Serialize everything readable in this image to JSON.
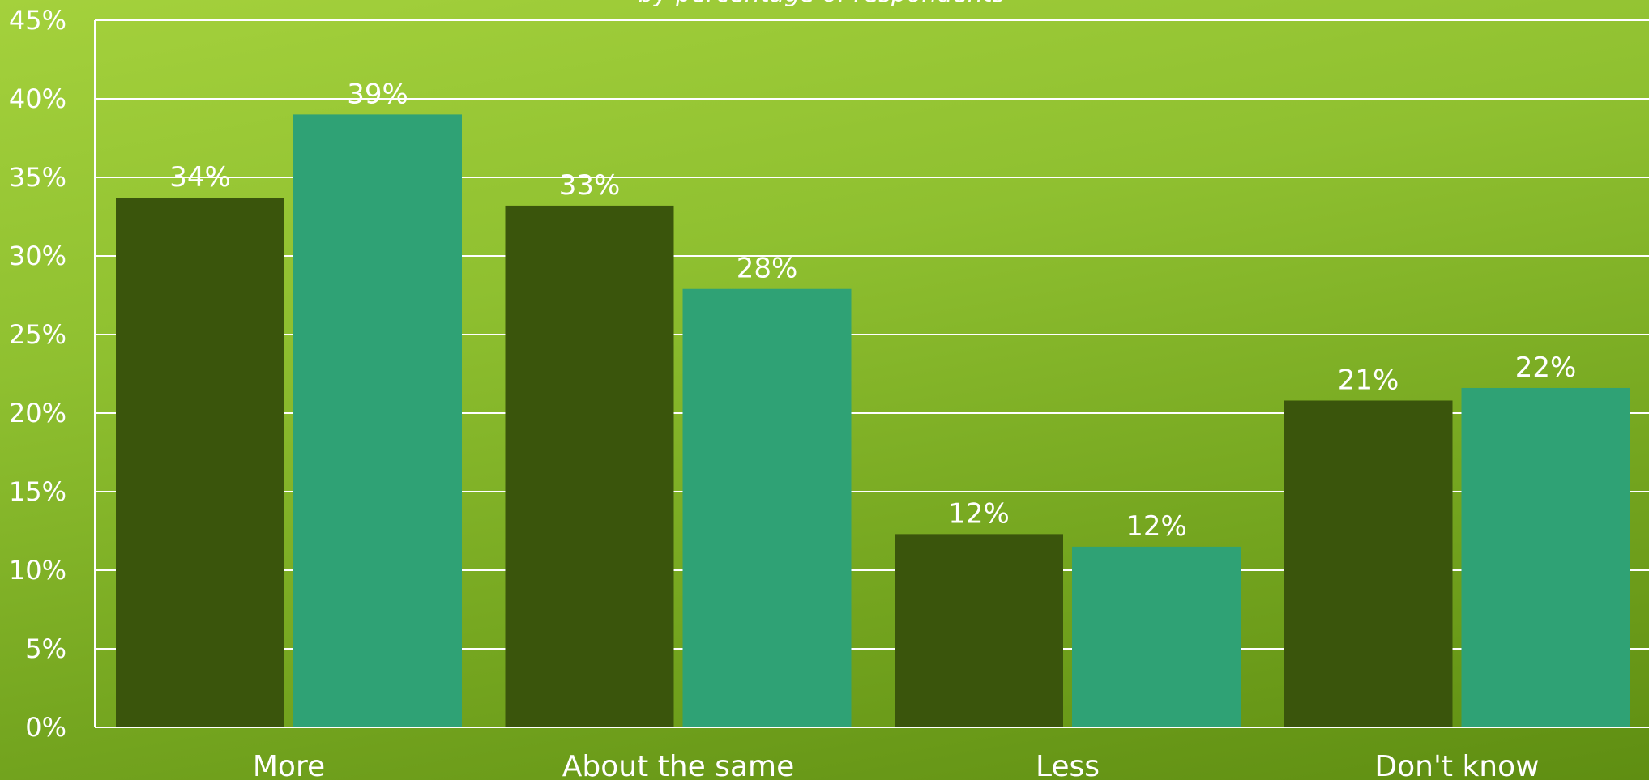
{
  "chart_data": {
    "type": "bar",
    "subtitle": "by percentage of respondents",
    "categories": [
      "More",
      "About the same",
      "Less",
      "Don't know"
    ],
    "series": [
      {
        "values": [
          34,
          33,
          12,
          21
        ],
        "color": "#3a550c"
      },
      {
        "values": [
          39,
          28,
          12,
          22
        ],
        "color": "#2fa275"
      }
    ],
    "actual_heights": [
      [
        33.7,
        33.2,
        12.3,
        20.8
      ],
      [
        39.0,
        27.9,
        11.5,
        21.6
      ]
    ],
    "data_labels": [
      [
        "34%",
        "33%",
        "12%",
        "21%"
      ],
      [
        "39%",
        "28%",
        "12%",
        "22%"
      ]
    ],
    "yticks": [
      "0%",
      "5%",
      "10%",
      "15%",
      "20%",
      "25%",
      "30%",
      "35%",
      "40%",
      "45%"
    ],
    "ylim": [
      0,
      45
    ],
    "grid": true,
    "legend": "none"
  }
}
